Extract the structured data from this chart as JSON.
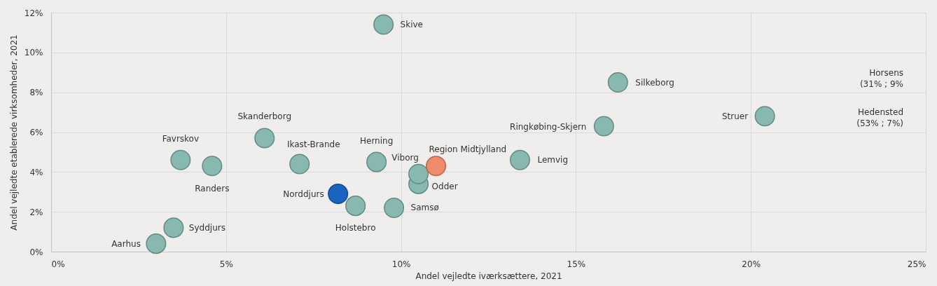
{
  "chart_data": {
    "type": "scatter",
    "xlabel": "Andel vejledte iværksættere, 2021",
    "ylabel": "Andel vejledte etablerede virksomheder, 2021",
    "xlim": [
      0,
      25
    ],
    "ylim": [
      0,
      12
    ],
    "xticks": [
      {
        "value": 0,
        "label": "0%"
      },
      {
        "value": 5,
        "label": "5%"
      },
      {
        "value": 10,
        "label": "10%"
      },
      {
        "value": 15,
        "label": "15%"
      },
      {
        "value": 20,
        "label": "20%"
      },
      {
        "value": 25,
        "label": "25%"
      }
    ],
    "yticks": [
      {
        "value": 0,
        "label": "0%"
      },
      {
        "value": 2,
        "label": "2%"
      },
      {
        "value": 4,
        "label": "4%"
      },
      {
        "value": 6,
        "label": "6%"
      },
      {
        "value": 8,
        "label": "8%"
      },
      {
        "value": 10,
        "label": "10%"
      },
      {
        "value": 12,
        "label": "12%"
      }
    ],
    "grid": true,
    "legend": false,
    "marker": "circle",
    "series": [
      {
        "name": "Aarhus",
        "color": "#87b9b1",
        "x": [
          3.0
        ],
        "values": [
          0.4
        ]
      },
      {
        "name": "Syddjurs",
        "color": "#87b9b1",
        "x": [
          3.5
        ],
        "values": [
          1.2
        ]
      },
      {
        "name": "Favrskov",
        "color": "#87b9b1",
        "x": [
          3.7
        ],
        "values": [
          4.6
        ]
      },
      {
        "name": "Randers",
        "color": "#87b9b1",
        "x": [
          4.6
        ],
        "values": [
          4.3
        ]
      },
      {
        "name": "Skanderborg",
        "color": "#87b9b1",
        "x": [
          6.1
        ],
        "values": [
          5.7
        ]
      },
      {
        "name": "Ikast-Brande",
        "color": "#87b9b1",
        "x": [
          7.1
        ],
        "values": [
          4.4
        ]
      },
      {
        "name": "Norddjurs",
        "color": "#1a64c0",
        "x": [
          8.2
        ],
        "values": [
          2.9
        ]
      },
      {
        "name": "Holstebro",
        "color": "#87b9b1",
        "x": [
          8.7
        ],
        "values": [
          2.3
        ]
      },
      {
        "name": "Herning",
        "color": "#87b9b1",
        "x": [
          9.3
        ],
        "values": [
          4.5
        ]
      },
      {
        "name": "Skive",
        "color": "#87b9b1",
        "x": [
          9.5
        ],
        "values": [
          11.4
        ]
      },
      {
        "name": "Samsø",
        "color": "#87b9b1",
        "x": [
          9.8
        ],
        "values": [
          2.2
        ]
      },
      {
        "name": "Odder",
        "color": "#87b9b1",
        "x": [
          10.5
        ],
        "values": [
          3.4
        ]
      },
      {
        "name": "Viborg",
        "color": "#87b9b1",
        "x": [
          10.5
        ],
        "values": [
          3.9
        ]
      },
      {
        "name": "Region Midtjylland",
        "color": "#ef8a6a",
        "x": [
          11.0
        ],
        "values": [
          4.3
        ]
      },
      {
        "name": "Lemvig",
        "color": "#87b9b1",
        "x": [
          13.4
        ],
        "values": [
          4.6
        ]
      },
      {
        "name": "Ringkøbing-Skjern",
        "color": "#87b9b1",
        "x": [
          15.8
        ],
        "values": [
          6.3
        ]
      },
      {
        "name": "Silkeborg",
        "color": "#87b9b1",
        "x": [
          16.2
        ],
        "values": [
          8.5
        ]
      },
      {
        "name": "Struer",
        "color": "#87b9b1",
        "x": [
          20.4
        ],
        "values": [
          6.8
        ]
      }
    ],
    "annotations": [
      "Horsens\n(31% ; 9%",
      "Hedensted\n(53% ; 7%)"
    ]
  }
}
